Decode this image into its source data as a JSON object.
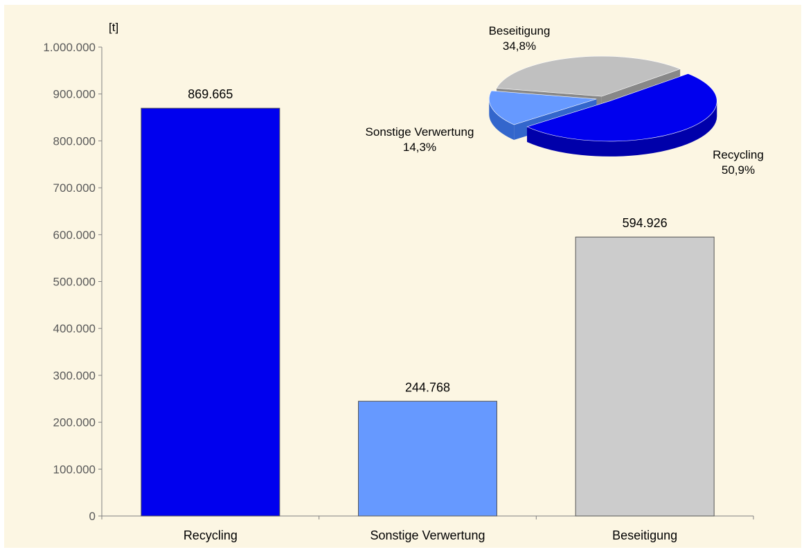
{
  "chart_data": [
    {
      "type": "bar",
      "unit_label": "[t]",
      "categories": [
        "Recycling",
        "Sonstige Verwertung",
        "Beseitigung"
      ],
      "values": [
        869665,
        244768,
        594926
      ],
      "value_labels": [
        "869.665",
        "244.768",
        "594.926"
      ],
      "colors": [
        "#0000ee",
        "#6699ff",
        "#cccccc"
      ],
      "ylim": [
        0,
        1000000
      ],
      "ytick_values": [
        0,
        100000,
        200000,
        300000,
        400000,
        500000,
        600000,
        700000,
        800000,
        900000,
        1000000
      ],
      "ytick_labels": [
        "0",
        "100.000",
        "200.000",
        "300.000",
        "400.000",
        "500.000",
        "600.000",
        "700.000",
        "800.000",
        "900.000",
        "1.000.000"
      ],
      "grid": false
    },
    {
      "type": "pie",
      "style": "3d-exploded",
      "slices": [
        {
          "label": "Recycling",
          "value": 50.9,
          "value_label": "50,9%",
          "color": "#0000ee",
          "side_color": "#0000aa"
        },
        {
          "label": "Sonstige Verwertung",
          "value": 14.3,
          "value_label": "14,3%",
          "color": "#6699ff",
          "side_color": "#3366cc"
        },
        {
          "label": "Beseitigung",
          "value": 34.8,
          "value_label": "34,8%",
          "color": "#c0c0c0",
          "side_color": "#888888"
        }
      ]
    }
  ]
}
